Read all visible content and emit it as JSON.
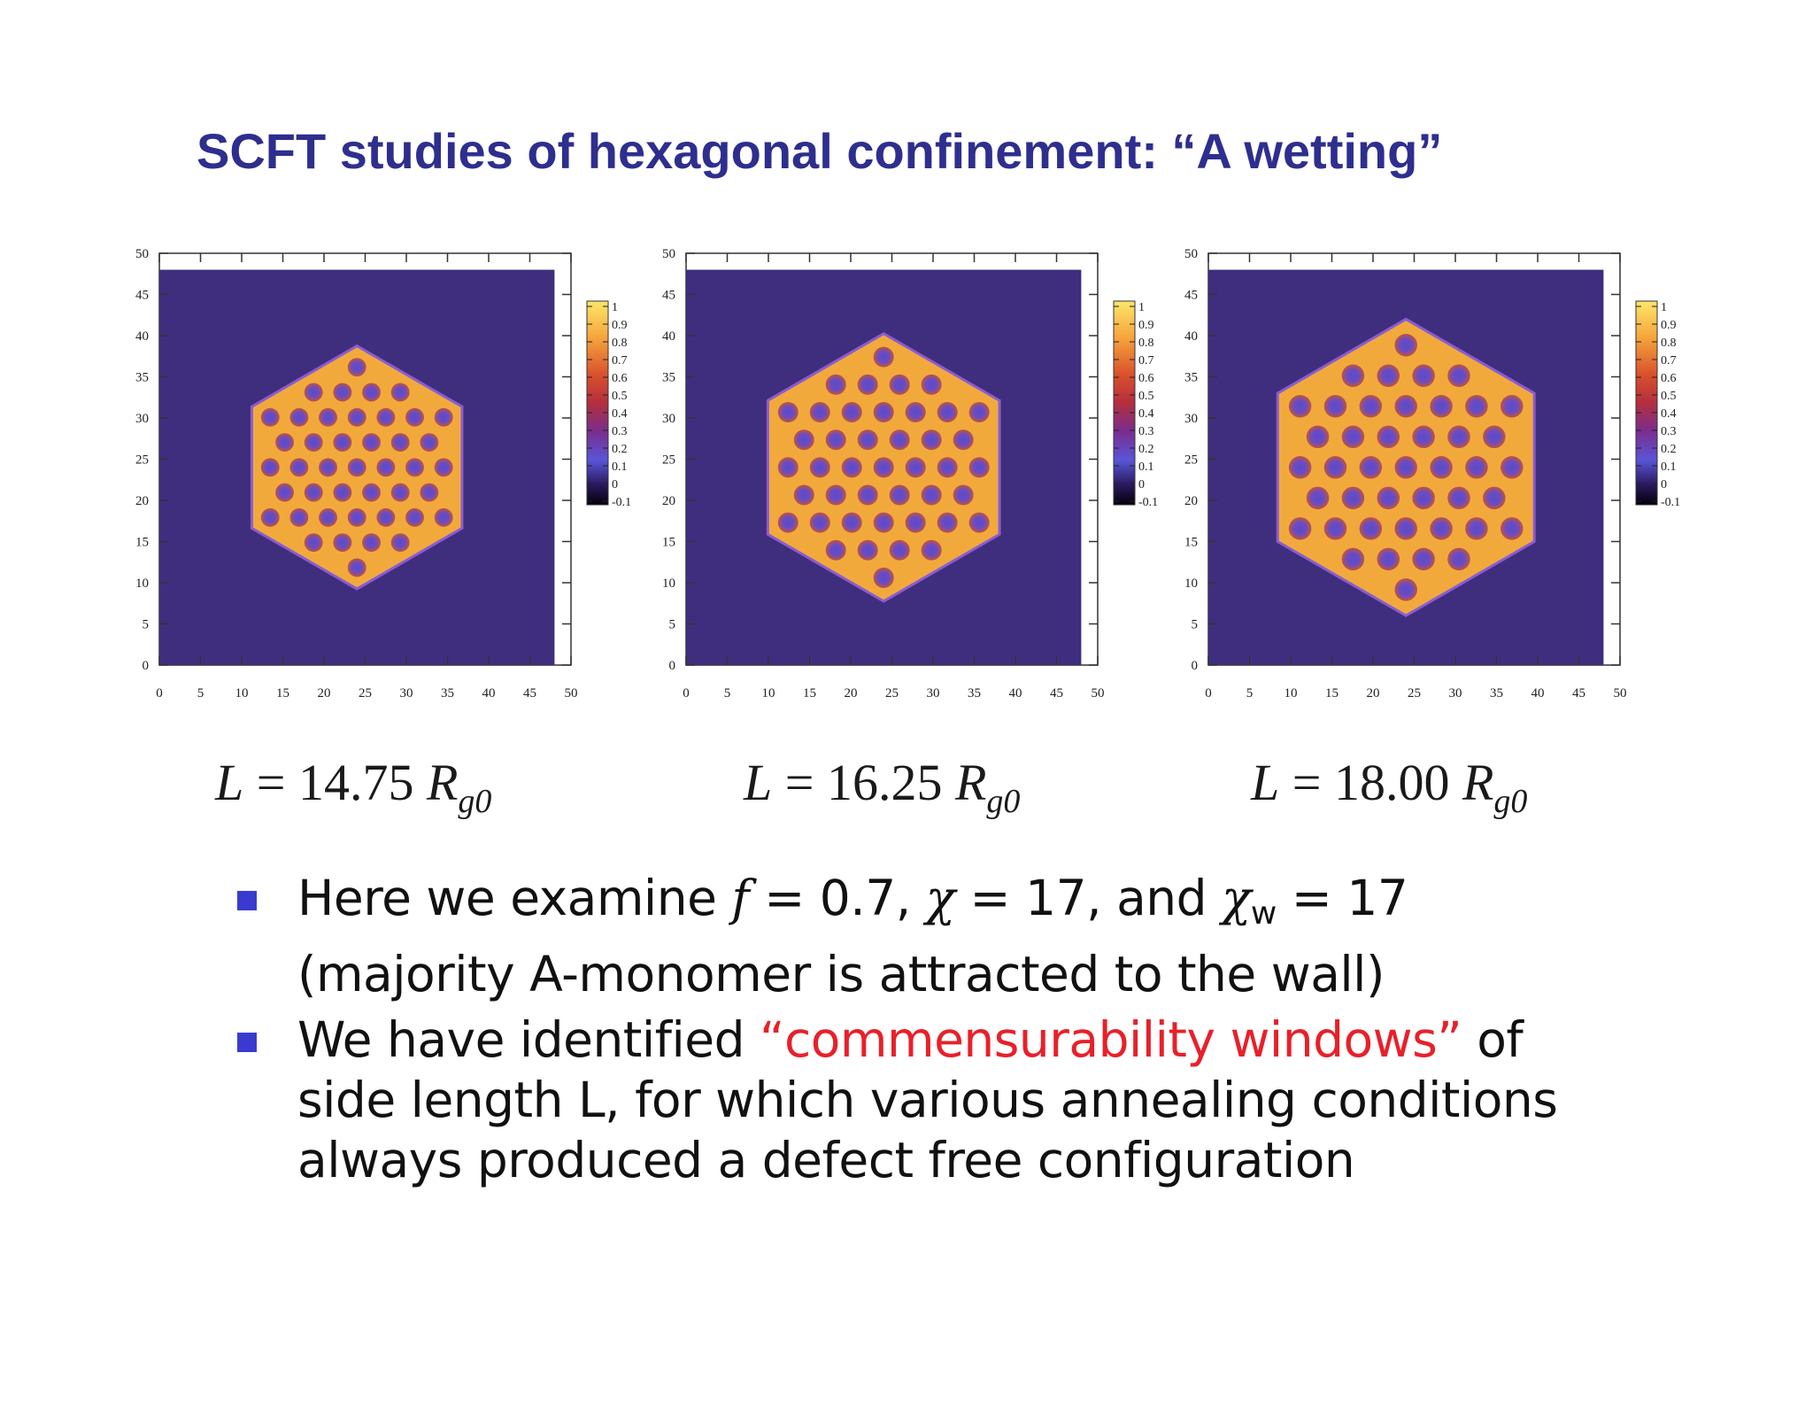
{
  "title": "SCFT studies of hexagonal confinement: “A wetting”",
  "colors": {
    "title": "#2e2e8f",
    "background_field": "#3f2e7e",
    "hex_fill": "#f2a93c",
    "domain": "#6a4cc4",
    "bullet_marker": "#3a3ad0",
    "highlight": "#e8202a"
  },
  "colorbar_ticks": [
    "1",
    "0.9",
    "0.8",
    "0.7",
    "0.6",
    "0.5",
    "0.4",
    "0.3",
    "0.2",
    "0.1",
    "0",
    "-0.1"
  ],
  "axis_ticks": [
    "0",
    "5",
    "10",
    "15",
    "20",
    "25",
    "30",
    "35",
    "40",
    "45",
    "50"
  ],
  "panels": [
    {
      "caption": {
        "L": "L",
        "eq": " = 14.75 ",
        "R": "R",
        "sub": "g0"
      }
    },
    {
      "caption": {
        "L": "L",
        "eq": " = 16.25 ",
        "R": "R",
        "sub": "g0"
      }
    },
    {
      "caption": {
        "L": "L",
        "eq": " = 18.00 ",
        "R": "R",
        "sub": "g0"
      }
    }
  ],
  "chart_data": [
    {
      "type": "heatmap",
      "x_range": [
        0,
        50
      ],
      "y_range": [
        0,
        50
      ],
      "color_range": [
        -0.1,
        1
      ],
      "hexagon_side_length": 14.75,
      "hexagon_center": [
        24,
        24
      ]
    },
    {
      "type": "heatmap",
      "x_range": [
        0,
        50
      ],
      "y_range": [
        0,
        50
      ],
      "color_range": [
        -0.1,
        1
      ],
      "hexagon_side_length": 16.25,
      "hexagon_center": [
        24,
        24
      ]
    },
    {
      "type": "heatmap",
      "x_range": [
        0,
        50
      ],
      "y_range": [
        0,
        50
      ],
      "color_range": [
        -0.1,
        1
      ],
      "hexagon_side_length": 18.0,
      "hexagon_center": [
        24,
        24
      ]
    }
  ],
  "bullets": [
    {
      "p1": "Here we examine ",
      "f": "f",
      "p2": " = 0.7, ",
      "chi": "χ",
      "p3": "  = 17, and ",
      "chiw": "χ",
      "w": "w",
      "p4": " = 17 (majority A-monomer is attracted to the wall)"
    },
    {
      "p1": "We have identified ",
      "highlight": "“commensurability windows”",
      "p2": " of side length L, for which various annealing conditions always produced a defect free configuration"
    }
  ]
}
